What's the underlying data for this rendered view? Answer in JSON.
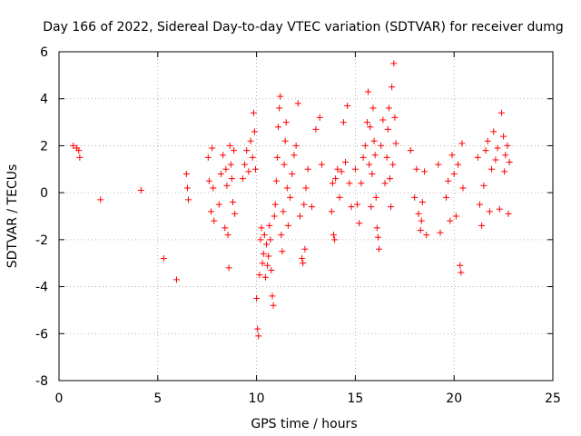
{
  "chart_data": {
    "type": "scatter",
    "title": "Day 166 of 2022, Sidereal Day-to-day VTEC variation (SDTVAR) for receiver dumg",
    "xlabel": "GPS time / hours",
    "ylabel": "SDTVAR / TECUs",
    "xlim": [
      0,
      25
    ],
    "ylim": [
      -8,
      6
    ],
    "xticks": [
      0,
      5,
      10,
      15,
      20,
      25
    ],
    "yticks": [
      -8,
      -6,
      -4,
      -2,
      0,
      2,
      4,
      6
    ],
    "grid": true,
    "marker": "+",
    "series_color": "#ff0000",
    "series": [
      {
        "name": "SDTVAR",
        "x": [
          0.72,
          0.9,
          1.0,
          1.05,
          2.1,
          4.15,
          5.3,
          5.95,
          6.45,
          6.5,
          6.55,
          7.55,
          7.6,
          7.7,
          7.75,
          7.8,
          7.85,
          8.1,
          8.2,
          8.3,
          8.4,
          8.45,
          8.5,
          8.55,
          8.6,
          8.65,
          8.7,
          8.75,
          8.8,
          8.85,
          8.9,
          9.3,
          9.4,
          9.5,
          9.6,
          9.7,
          9.8,
          9.85,
          9.9,
          9.95,
          10.0,
          10.05,
          10.1,
          10.15,
          10.2,
          10.25,
          10.3,
          10.35,
          10.4,
          10.45,
          10.5,
          10.55,
          10.6,
          10.65,
          10.7,
          10.75,
          10.8,
          10.85,
          10.9,
          10.95,
          11.0,
          11.05,
          11.1,
          11.15,
          11.2,
          11.25,
          11.3,
          11.35,
          11.4,
          11.45,
          11.5,
          11.55,
          11.6,
          11.7,
          11.8,
          11.9,
          12.0,
          12.1,
          12.2,
          12.3,
          12.35,
          12.4,
          12.45,
          12.5,
          12.6,
          12.8,
          13.0,
          13.2,
          13.3,
          13.8,
          13.85,
          13.9,
          13.95,
          14.0,
          14.1,
          14.2,
          14.3,
          14.4,
          14.5,
          14.6,
          14.7,
          14.8,
          15.0,
          15.1,
          15.2,
          15.3,
          15.4,
          15.5,
          15.6,
          15.65,
          15.7,
          15.75,
          15.8,
          15.85,
          15.9,
          15.95,
          16.0,
          16.05,
          16.1,
          16.15,
          16.2,
          16.3,
          16.4,
          16.5,
          16.6,
          16.65,
          16.7,
          16.75,
          16.8,
          16.85,
          16.9,
          16.95,
          17.0,
          17.05,
          17.8,
          18.0,
          18.1,
          18.2,
          18.3,
          18.35,
          18.4,
          18.5,
          18.6,
          19.2,
          19.3,
          19.6,
          19.7,
          19.8,
          19.9,
          20.0,
          20.1,
          20.2,
          20.3,
          20.35,
          20.4,
          20.45,
          21.2,
          21.3,
          21.4,
          21.5,
          21.6,
          21.7,
          21.8,
          21.9,
          22.0,
          22.1,
          22.2,
          22.3,
          22.4,
          22.5,
          22.55,
          22.6,
          22.7,
          22.75,
          22.8
        ],
        "y": [
          2.0,
          1.9,
          1.8,
          1.5,
          -0.3,
          0.1,
          -2.8,
          -3.7,
          0.8,
          0.2,
          -0.3,
          1.5,
          0.5,
          -0.8,
          1.9,
          0.2,
          -1.2,
          -0.5,
          0.8,
          1.6,
          -1.5,
          1.0,
          0.3,
          -1.8,
          -3.2,
          2.0,
          1.2,
          0.6,
          -0.4,
          1.8,
          -0.9,
          0.6,
          1.2,
          1.8,
          0.9,
          2.2,
          1.5,
          3.4,
          2.6,
          1.0,
          -4.5,
          -5.8,
          -6.1,
          -3.5,
          -2.0,
          -1.5,
          -3.0,
          -2.6,
          -1.8,
          -3.6,
          -2.2,
          -3.1,
          -2.7,
          -1.4,
          -2.0,
          -3.3,
          -4.4,
          -4.8,
          -1.0,
          -0.5,
          0.5,
          1.5,
          2.8,
          3.6,
          4.1,
          -1.8,
          -2.5,
          -0.8,
          1.2,
          2.2,
          3.0,
          0.2,
          -1.4,
          -0.2,
          0.8,
          1.6,
          2.0,
          3.8,
          -1.0,
          -2.8,
          -3.0,
          -0.5,
          -2.4,
          0.2,
          1.0,
          -0.6,
          2.7,
          3.2,
          1.2,
          -0.8,
          0.4,
          -1.8,
          -2.0,
          0.6,
          1.0,
          -0.2,
          0.9,
          3.0,
          1.3,
          3.7,
          0.4,
          -0.6,
          1.0,
          -0.5,
          -1.3,
          0.4,
          1.5,
          2.0,
          3.0,
          4.3,
          1.2,
          2.8,
          -0.6,
          0.8,
          3.6,
          2.2,
          1.6,
          -0.2,
          -1.5,
          -1.9,
          -2.4,
          2.0,
          3.1,
          0.4,
          1.5,
          2.7,
          3.6,
          0.6,
          -0.6,
          4.5,
          1.2,
          5.5,
          3.2,
          2.1,
          1.8,
          -0.2,
          1.0,
          -0.9,
          -1.6,
          -1.2,
          -0.4,
          0.9,
          -1.8,
          1.2,
          -1.7,
          -0.2,
          0.5,
          -1.2,
          1.6,
          0.8,
          -1.0,
          1.2,
          -3.1,
          -3.4,
          2.1,
          0.2,
          1.5,
          -0.5,
          -1.4,
          0.3,
          1.8,
          2.2,
          -0.8,
          1.0,
          2.6,
          1.4,
          1.9,
          -0.7,
          3.4,
          2.4,
          0.9,
          1.6,
          2.0,
          -0.9,
          1.3
        ]
      }
    ]
  }
}
